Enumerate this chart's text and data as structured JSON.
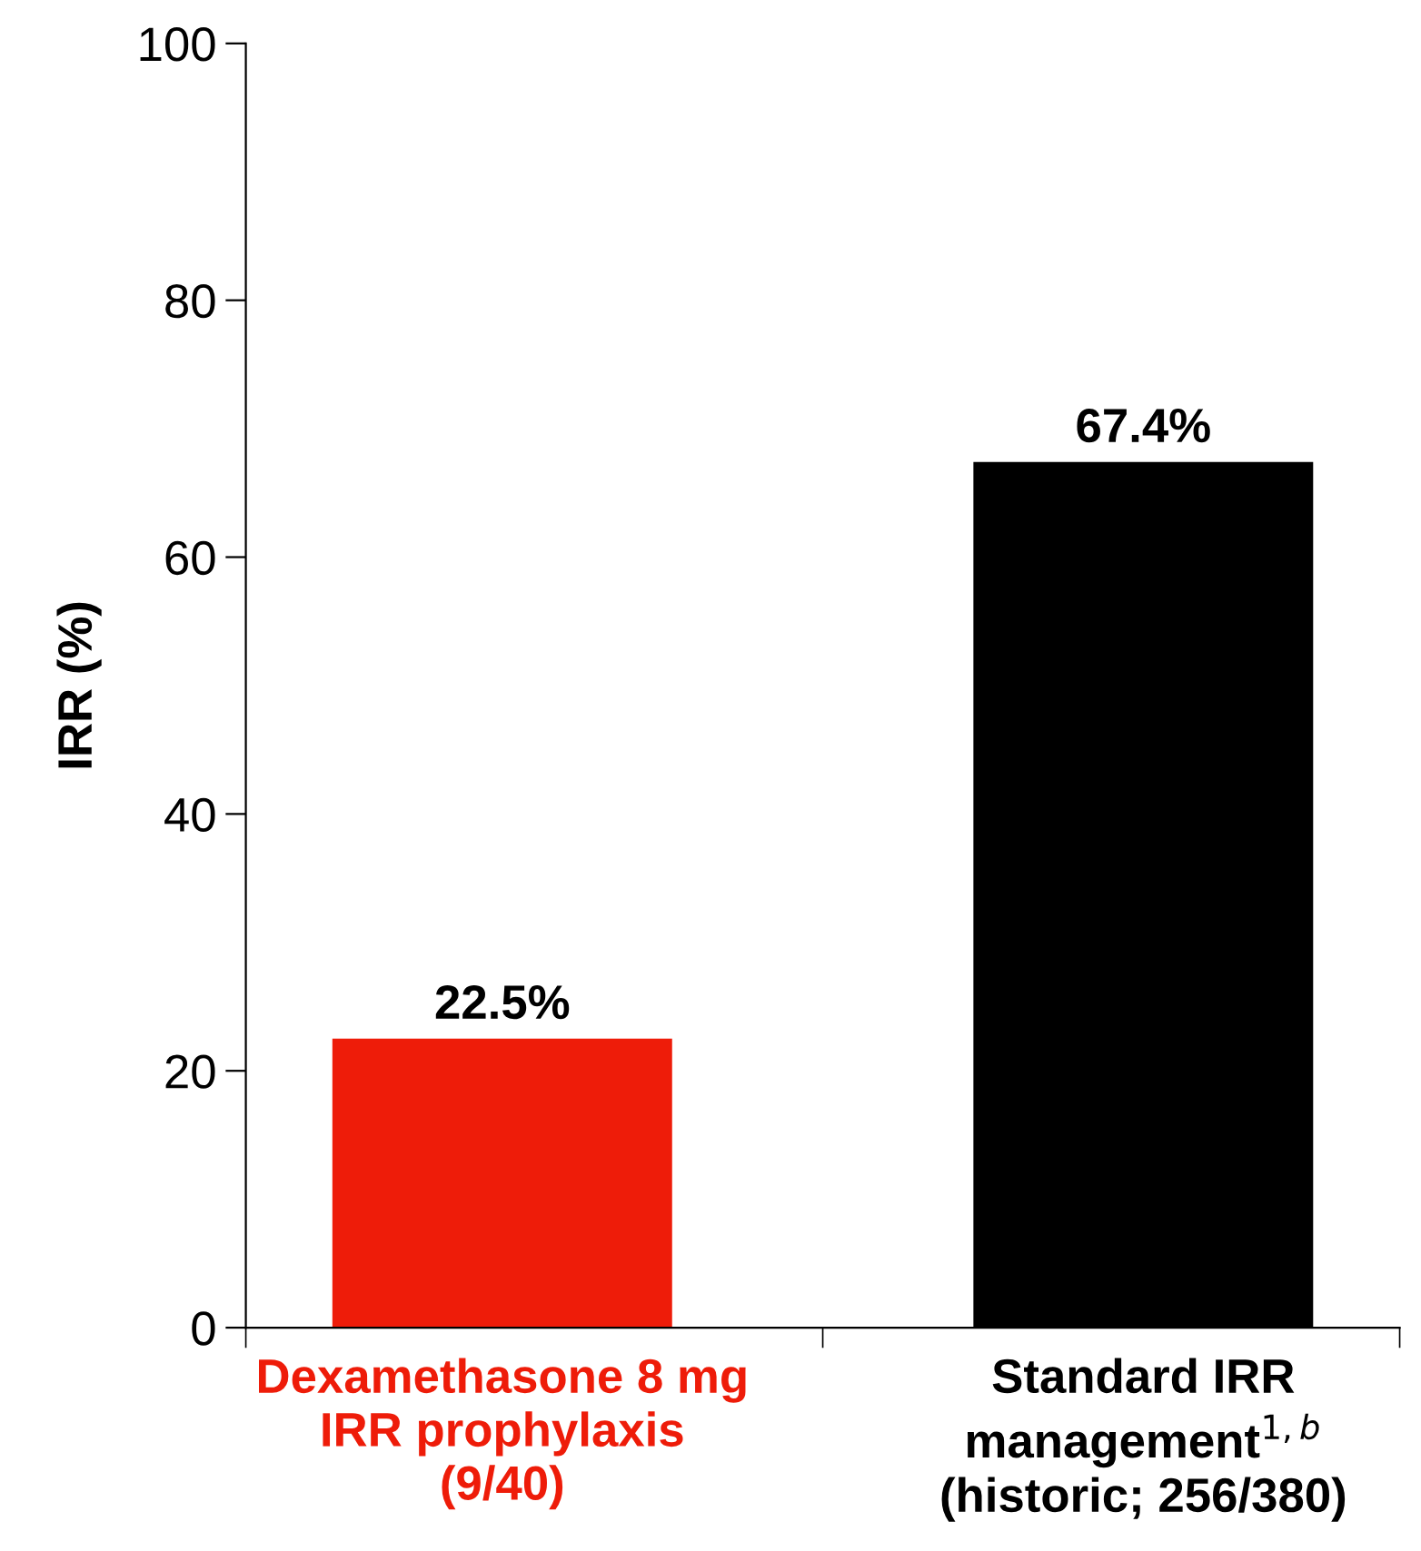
{
  "chart_data": {
    "type": "bar",
    "ylabel": "IRR (%)",
    "categories": [
      "Dexamethasone 8 mg\nIRR prophylaxis\n(9/40)",
      "Standard IRR\nmanagement$^{1,b}$\n(historic; 256/380)"
    ],
    "values": [
      22.5,
      67.4
    ],
    "colors": [
      "#ee1c09",
      "#000000"
    ],
    "value_labels": [
      "22.5%",
      "67.4%"
    ],
    "ylim": [
      0,
      100
    ],
    "yticks": [
      0,
      20,
      40,
      60,
      80,
      100
    ],
    "grid": false,
    "legend": false
  }
}
